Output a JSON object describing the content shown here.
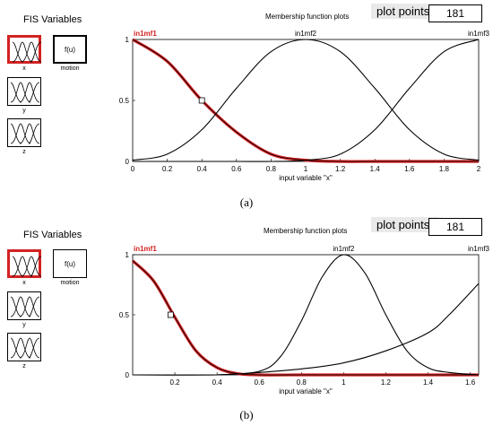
{
  "panels": [
    {
      "fis_title": "FIS Variables",
      "variables": [
        {
          "label": "x",
          "icon": "membership-icon",
          "selected": true
        },
        {
          "label": "y",
          "icon": "membership-icon",
          "selected": false
        },
        {
          "label": "z",
          "icon": "membership-icon",
          "selected": false
        }
      ],
      "rule_block": {
        "label": "f(u)",
        "caption": "motion"
      },
      "plot_title": "Membership function plots",
      "plot_points_label": "plot points:",
      "plot_points_value": "181",
      "caption": "(a)",
      "accent_color": "#d32222",
      "chart_data": {
        "type": "line",
        "xlabel": "input variable \"x\"",
        "xlim": [
          0,
          2
        ],
        "ylim": [
          0,
          1
        ],
        "xticks": [
          "0",
          "0.2",
          "0.4",
          "0.6",
          "0.8",
          "1",
          "1.2",
          "1.4",
          "1.6",
          "1.8",
          "2"
        ],
        "yticks": [
          "0",
          "0.5",
          "1"
        ],
        "series": [
          {
            "name": "in1mf1",
            "color": "#d32222",
            "selected": true,
            "x": [
              0,
              0.2,
              0.4,
              0.6,
              0.8,
              1.0,
              1.2,
              1.4,
              1.6,
              1.8,
              2.0
            ],
            "y": [
              1.0,
              0.82,
              0.5,
              0.24,
              0.06,
              0.01,
              0.0,
              0.0,
              0.0,
              0.0,
              0.0
            ]
          },
          {
            "name": "in1mf2",
            "color": "#000000",
            "x": [
              0,
              0.2,
              0.4,
              0.6,
              0.8,
              1.0,
              1.2,
              1.4,
              1.6,
              1.8,
              2.0
            ],
            "y": [
              0.01,
              0.06,
              0.26,
              0.6,
              0.9,
              1.0,
              0.9,
              0.6,
              0.26,
              0.06,
              0.01
            ]
          },
          {
            "name": "in1mf3",
            "color": "#000000",
            "x": [
              0,
              0.2,
              0.4,
              0.6,
              0.8,
              1.0,
              1.2,
              1.4,
              1.6,
              1.8,
              2.0
            ],
            "y": [
              0.0,
              0.0,
              0.0,
              0.0,
              0.0,
              0.01,
              0.06,
              0.26,
              0.6,
              0.9,
              1.0
            ]
          }
        ],
        "marker": {
          "x": 0.4,
          "y": 0.5
        }
      }
    },
    {
      "fis_title": "FIS Variables",
      "variables": [
        {
          "label": "x",
          "icon": "membership-icon",
          "selected": true
        },
        {
          "label": "y",
          "icon": "membership-icon",
          "selected": false
        },
        {
          "label": "z",
          "icon": "membership-icon",
          "selected": false
        }
      ],
      "rule_block": {
        "label": "f(u)",
        "caption": "motion"
      },
      "plot_title": "Membership function plots",
      "plot_points_label": "plot points:",
      "plot_points_value": "181",
      "caption": "(b)",
      "accent_color": "#d32222",
      "chart_data": {
        "type": "line",
        "xlabel": "input variable \"x\"",
        "xlim": [
          0,
          1.64
        ],
        "ylim": [
          0,
          1
        ],
        "xticks": [
          "0.2",
          "0.4",
          "0.6",
          "0.8",
          "1",
          "1.2",
          "1.4",
          "1.6"
        ],
        "yticks": [
          "0",
          "0.5",
          "1"
        ],
        "series": [
          {
            "name": "in1mf1",
            "color": "#d32222",
            "selected": true,
            "x": [
              0,
              0.1,
              0.2,
              0.3,
              0.4,
              0.5,
              0.6,
              0.8,
              1.0,
              1.2,
              1.4,
              1.64
            ],
            "y": [
              0.95,
              0.78,
              0.48,
              0.2,
              0.06,
              0.01,
              0.0,
              0.0,
              0.0,
              0.0,
              0.0,
              0.0
            ]
          },
          {
            "name": "in1mf2",
            "color": "#000000",
            "x": [
              0.4,
              0.6,
              0.7,
              0.8,
              0.9,
              1.0,
              1.1,
              1.2,
              1.3,
              1.4,
              1.5,
              1.64
            ],
            "y": [
              0.0,
              0.03,
              0.15,
              0.45,
              0.82,
              1.0,
              0.85,
              0.5,
              0.2,
              0.06,
              0.02,
              0.0
            ]
          },
          {
            "name": "in1mf3",
            "color": "#000000",
            "x": [
              0,
              0.4,
              0.6,
              0.8,
              1.0,
              1.2,
              1.4,
              1.5,
              1.64
            ],
            "y": [
              0.0,
              0.0,
              0.02,
              0.05,
              0.1,
              0.2,
              0.35,
              0.5,
              0.76
            ]
          }
        ],
        "marker": {
          "x": 0.18,
          "y": 0.5
        }
      }
    }
  ]
}
